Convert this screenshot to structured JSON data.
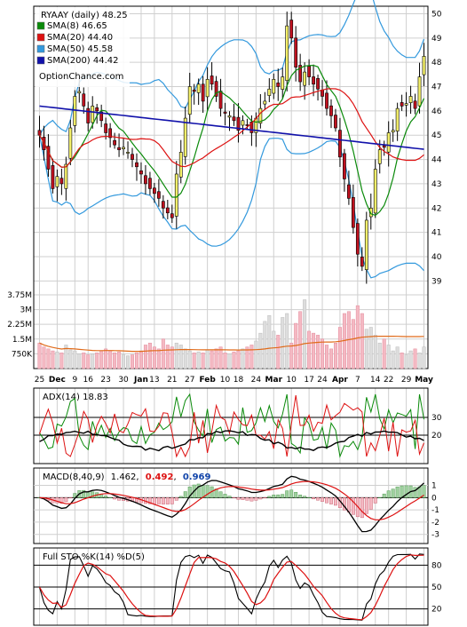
{
  "chart_data": {
    "type": "candlestick",
    "title": "RYAAY (daily) 48.25",
    "watermark": "OptionChance.com",
    "x_tick_labels": [
      "25",
      "Dec",
      "9",
      "16",
      "23",
      "30",
      "Jan",
      "13",
      "21",
      "27",
      "Feb",
      "10",
      "18",
      "24",
      "Mar",
      "10",
      "17",
      "24",
      "Apr",
      "7",
      "14",
      "22",
      "29",
      "May"
    ],
    "price_axis": {
      "ylim": [
        38.5,
        50.2
      ],
      "ticks": [
        39,
        40,
        41,
        42,
        43,
        44,
        45,
        46,
        47,
        48,
        49,
        50
      ]
    },
    "volume_axis": {
      "ylim": [
        0,
        4200000
      ],
      "tick_labels": [
        "3.75M",
        "3M",
        "2.25M",
        "1.5M",
        "750K"
      ],
      "tick_values": [
        3750000,
        3000000,
        2250000,
        1500000,
        750000
      ]
    },
    "legend": [
      {
        "label": "SMA(8) 46.65",
        "color": "#0a8a0a"
      },
      {
        "label": "SMA(20) 44.40",
        "color": "#dd1111"
      },
      {
        "label": "SMA(50) 45.58",
        "color": "#3399dd"
      },
      {
        "label": "SMA(200) 44.42",
        "color": "#1111aa"
      }
    ],
    "closes": [
      45.0,
      44.4,
      43.6,
      42.8,
      43.3,
      43.0,
      43.8,
      45.3,
      46.6,
      46.8,
      46.2,
      45.5,
      46.2,
      46.0,
      45.6,
      45.1,
      44.9,
      44.6,
      44.4,
      44.5,
      44.3,
      44.0,
      43.7,
      43.4,
      43.0,
      42.8,
      42.6,
      42.4,
      42.0,
      41.8,
      41.6,
      43.4,
      44.3,
      45.7,
      47.0,
      46.8,
      47.1,
      46.4,
      47.3,
      47.1,
      46.6,
      46.1,
      45.9,
      45.8,
      45.6,
      45.2,
      45.6,
      45.4,
      45.1,
      45.7,
      46.1,
      46.4,
      46.9,
      47.3,
      47.0,
      47.4,
      49.5,
      49.0,
      47.8,
      47.2,
      47.6,
      47.4,
      47.1,
      46.9,
      46.6,
      46.1,
      45.8,
      45.3,
      44.1,
      43.2,
      42.4,
      41.2,
      40.1,
      39.6,
      41.5,
      42.0,
      43.6,
      44.4,
      44.5,
      45.1,
      45.2,
      46.1,
      46.2,
      46.3,
      46.6,
      46.1,
      47.4,
      48.25
    ],
    "volume_estimates": [
      1300000,
      1100000,
      1000000,
      900000,
      850000,
      800000,
      1200000,
      950000,
      900000,
      750000,
      800000,
      700000,
      750000,
      800000,
      900000,
      1000000,
      900000,
      800000,
      850000,
      700000,
      650000,
      700000,
      800000,
      900000,
      1200000,
      1300000,
      1100000,
      1000000,
      1500000,
      1200000,
      1100000,
      1300000,
      1200000,
      1000000,
      900000,
      800000,
      850000,
      800000,
      950000,
      900000,
      1000000,
      1100000,
      800000,
      750000,
      850000,
      900000,
      1000000,
      1100000,
      1200000,
      1400000,
      1800000,
      2400000,
      2700000,
      1900000,
      1700000,
      2600000,
      2800000,
      1300000,
      2300000,
      2900000,
      3500000,
      1900000,
      1800000,
      1700000,
      1500000,
      1200000,
      1000000,
      1300000,
      2100000,
      2800000,
      2900000,
      2500000,
      3200000,
      2800000,
      2000000,
      2100000,
      1700000,
      1300000,
      1500000,
      1200000,
      900000,
      1100000,
      800000,
      700000,
      900000,
      1000000,
      800000,
      1100000
    ],
    "adx_panel": {
      "label": "ADX(14) 18.83",
      "lines": [
        20,
        30
      ],
      "tick_labels": [
        "30",
        "20"
      ]
    },
    "macd_panel": {
      "label": "MACD(8,40,9)",
      "macd": "1.462",
      "signal": "0.492",
      "histogram": "0.969",
      "tick_labels": [
        "1",
        "0",
        "-1",
        "-2",
        "-3"
      ]
    },
    "sto_panel": {
      "label": "Full STO %K(14) %D(5)",
      "tick_labels": [
        "80",
        "50",
        "20"
      ]
    }
  }
}
